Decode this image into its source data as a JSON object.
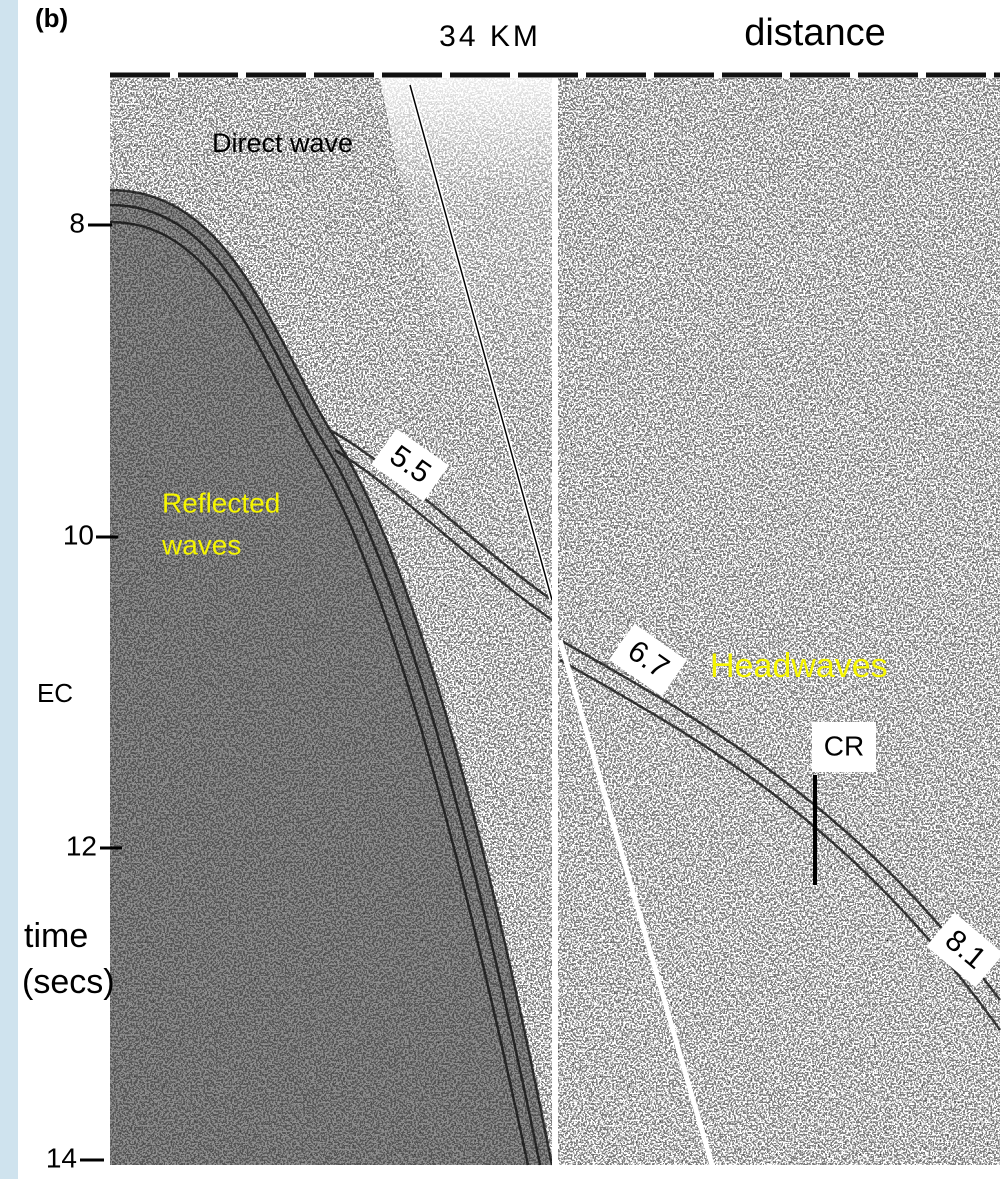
{
  "panel_label": "(b)",
  "distance_label": "34 KM",
  "distance_caption": "distance",
  "time_ticks": [
    "8",
    "10",
    "12",
    "14"
  ],
  "station_label": "EC",
  "time_caption": [
    "time",
    "(secs)"
  ],
  "annotations": {
    "direct_wave": "Direct wave",
    "reflected_waves": [
      "Reflected",
      "waves"
    ],
    "headwaves": "Headwaves",
    "cr": "CR"
  },
  "velocity_labels": [
    "5.5",
    "6.7",
    "8.1"
  ]
}
